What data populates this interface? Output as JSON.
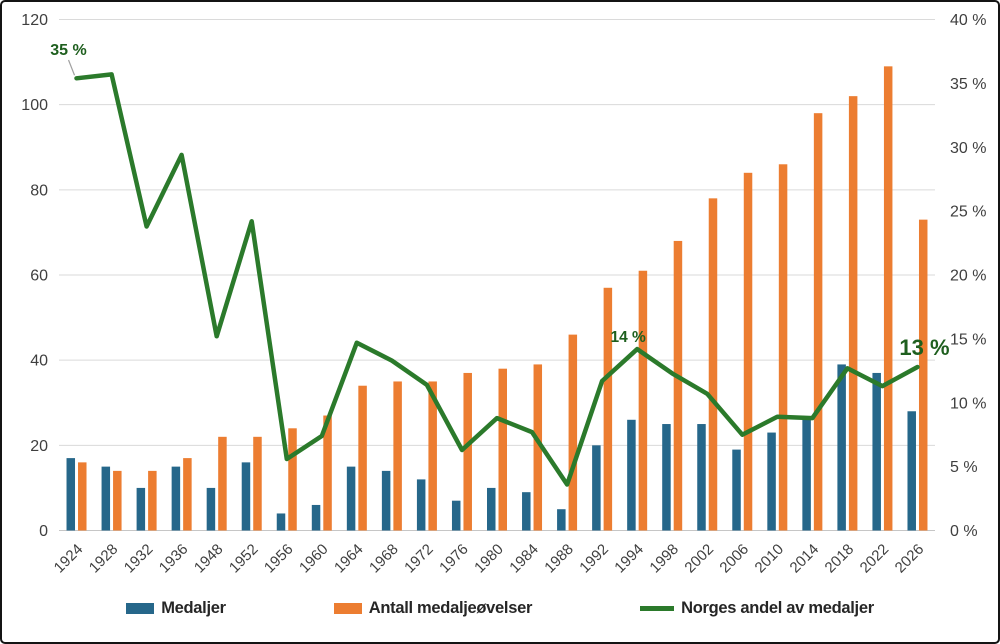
{
  "chart_data": {
    "type": "combo-bar-line",
    "title": "",
    "categories": [
      "1924",
      "1928",
      "1932",
      "1936",
      "1948",
      "1952",
      "1956",
      "1960",
      "1964",
      "1968",
      "1972",
      "1976",
      "1980",
      "1984",
      "1988",
      "1992",
      "1994",
      "1998",
      "2002",
      "2006",
      "2010",
      "2014",
      "2018",
      "2022",
      "2026"
    ],
    "series": [
      {
        "name": "Medaljer",
        "type": "bar",
        "axis": "left",
        "color": "#26678A",
        "values": [
          17,
          15,
          10,
          15,
          10,
          16,
          4,
          6,
          15,
          14,
          12,
          7,
          10,
          9,
          5,
          20,
          26,
          25,
          25,
          19,
          23,
          26,
          39,
          37,
          28
        ]
      },
      {
        "name": "Antall medaljeøvelser",
        "type": "bar",
        "axis": "left",
        "color": "#EC7D31",
        "values": [
          16,
          14,
          14,
          17,
          22,
          22,
          24,
          27,
          34,
          35,
          35,
          37,
          38,
          39,
          46,
          57,
          61,
          68,
          78,
          84,
          86,
          98,
          102,
          109,
          73
        ]
      },
      {
        "name": "Norges andel av medaljer",
        "type": "line",
        "axis": "right",
        "color": "#2B7A2B",
        "values": [
          35.4,
          35.7,
          23.8,
          29.4,
          15.2,
          24.2,
          5.6,
          7.4,
          14.7,
          13.3,
          11.4,
          6.3,
          8.8,
          7.7,
          3.6,
          11.7,
          14.2,
          12.3,
          10.7,
          7.5,
          8.9,
          8.8,
          12.7,
          11.3,
          12.8
        ]
      }
    ],
    "axes": {
      "left": {
        "min": 0,
        "max": 120,
        "step": 20,
        "tick_labels": [
          "0",
          "20",
          "40",
          "60",
          "80",
          "100",
          "120"
        ]
      },
      "right": {
        "min": 0,
        "max": 40,
        "step": 5,
        "tick_labels": [
          "0 %",
          "5 %",
          "10 %",
          "15 %",
          "20 %",
          "25 %",
          "30 %",
          "35 %",
          "40 %"
        ]
      }
    },
    "grid": "horizontal-left-axis",
    "legend_position": "bottom",
    "annotations": [
      {
        "text": "35 %",
        "category": "1924",
        "series": "Norges andel av medaljer"
      },
      {
        "text": "14 %",
        "category": "1994",
        "series": "Norges andel av medaljer"
      },
      {
        "text": "13 %",
        "category": "2026",
        "series": "Norges andel av medaljer",
        "emphasis": true
      }
    ],
    "colors": {
      "medals_bar": "#26678A",
      "events_bar": "#EC7D31",
      "share_line": "#2B7A2B",
      "annotation_text": "#1E5F1E",
      "axis_text": "#3F3F3F",
      "gridline": "#DADADA",
      "baseline": "#C6C6C6",
      "leader_line": "#A0A0A0"
    }
  }
}
